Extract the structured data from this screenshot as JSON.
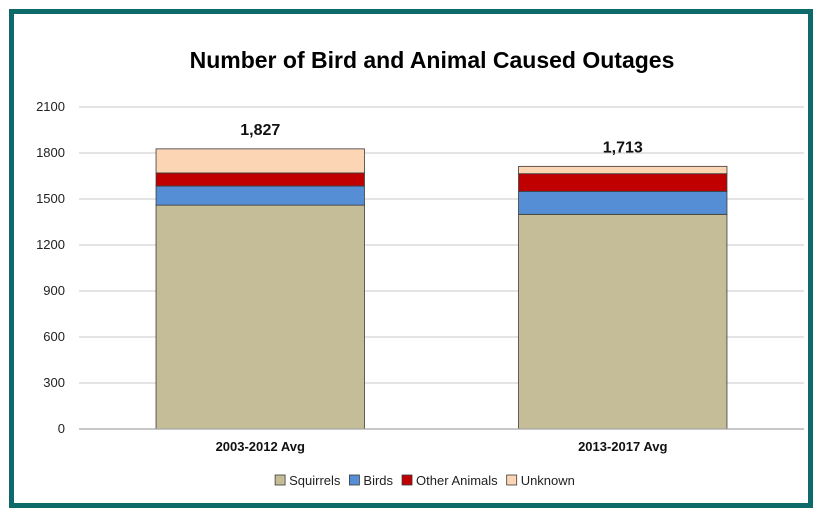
{
  "chart_data": {
    "type": "bar",
    "stacked": true,
    "title": "Number of Bird and Animal Caused Outages",
    "xlabel": "",
    "ylabel": "",
    "ylim": [
      0,
      2100
    ],
    "yticks": [
      0,
      300,
      600,
      900,
      1200,
      1500,
      1800,
      2100
    ],
    "grid": true,
    "legend_position": "bottom",
    "categories": [
      "2003-2012 Avg",
      "2013-2017 Avg"
    ],
    "totals": [
      "1,827",
      "1,713"
    ],
    "series": [
      {
        "name": "Squirrels",
        "color": "#c4bd97",
        "values": [
          1460,
          1400
        ]
      },
      {
        "name": "Birds",
        "color": "#558ed5",
        "values": [
          125,
          150
        ]
      },
      {
        "name": "Other Animals",
        "color": "#c00000",
        "values": [
          85,
          115
        ]
      },
      {
        "name": "Unknown",
        "color": "#fcd5b5",
        "values": [
          157,
          48
        ]
      }
    ]
  }
}
